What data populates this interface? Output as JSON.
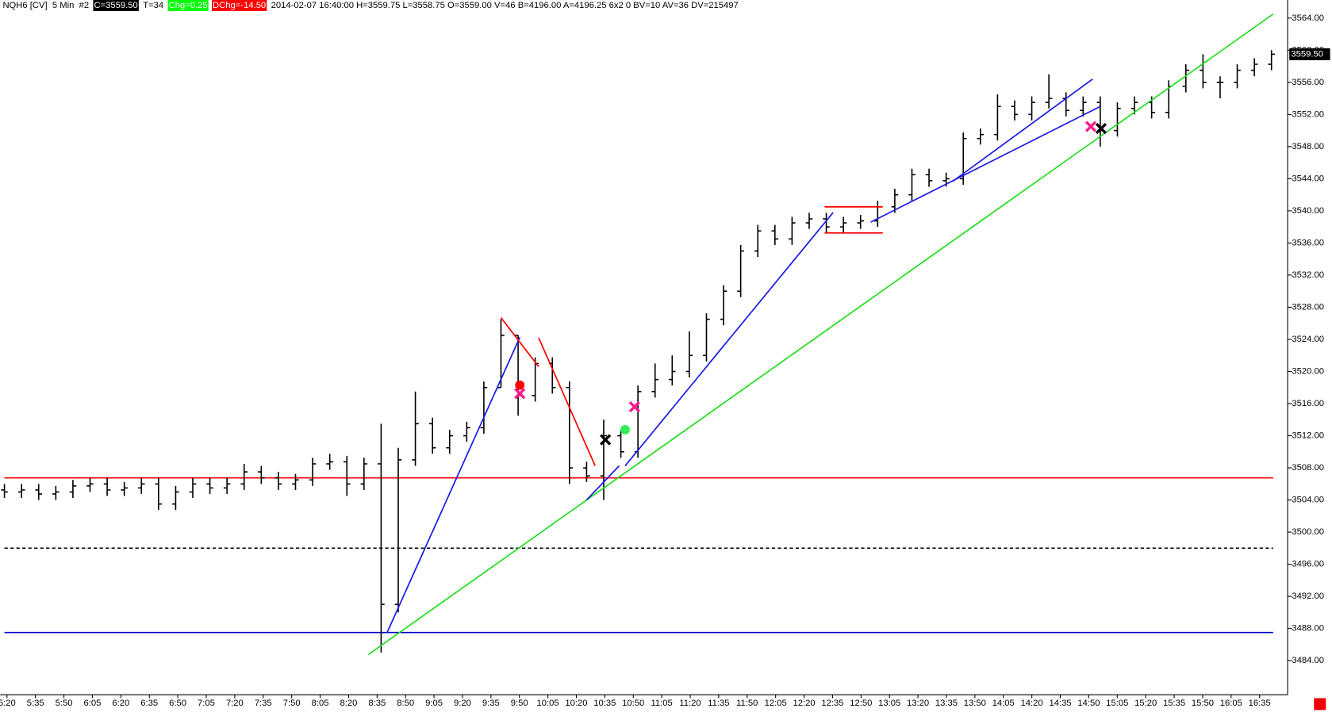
{
  "chart_data": {
    "type": "ohlc",
    "header": [
      {
        "text": "NQH6 [CV]  5 Min  #2"
      },
      {
        "text": "C=3559.50",
        "background": "#000000",
        "color": "#ffffff"
      },
      {
        "text": "T=34"
      },
      {
        "text": "Chg=0.25",
        "background": "#00ff00",
        "color": "#ffffff"
      },
      {
        "text": "DChg=-14.50",
        "background": "#ff0000",
        "color": "#ffffff"
      },
      {
        "text": "2014-02-07 16:40:00 H=3559.75 L=3558.75 O=3559.00 V=46 B=4196.00 A=4196.25 6x2 0 BV=10 AV=36 DV=215497"
      }
    ],
    "color": "#000000",
    "open": [
      3505.25,
      3505,
      3505.25,
      3504.75,
      3505,
      3505.75,
      3506,
      3505.25,
      3505.5,
      3506,
      3503.5,
      3505,
      3506,
      3505.5,
      3506,
      3507.5,
      3506.75,
      3506,
      3506.5,
      3508.5,
      3508.75,
      3506,
      3508.5,
      3491,
      3509,
      3513.5,
      3510.5,
      3512,
      3513,
      3518,
      3524.5,
      3517,
      3521,
      3518,
      3508,
      3507,
      3512,
      3510,
      3517.5,
      3519,
      3520,
      3522,
      3526.5,
      3530,
      3535,
      3537.5,
      3536.5,
      3538.5,
      3539,
      3538,
      3538.5,
      3538.75,
      3540.5,
      3542,
      3544.5,
      3543.75,
      3544,
      3549,
      3549.5,
      3553,
      3552,
      3553.5,
      3554,
      3552.5,
      3553.5,
      3550,
      3552.75,
      3553.5,
      3552.25,
      3555.5,
      3557.5,
      3556,
      3556,
      3557.5,
      3558.25
    ],
    "high": [
      3506,
      3506,
      3506,
      3505.75,
      3506.5,
      3506.75,
      3506.75,
      3506.25,
      3506.75,
      3506.75,
      3505.75,
      3506.75,
      3506.75,
      3506.75,
      3508.5,
      3508.25,
      3507.5,
      3507.25,
      3509.25,
      3509.75,
      3509.5,
      3509.25,
      3513.5,
      3510.5,
      3517.5,
      3514.25,
      3512.75,
      3513.75,
      3518.75,
      3526.5,
      3524.5,
      3521.75,
      3521.75,
      3518.75,
      3508.75,
      3514,
      3512.75,
      3518.25,
      3521,
      3522,
      3525,
      3527.25,
      3530.75,
      3535.75,
      3538.25,
      3538.25,
      3539.25,
      3539.75,
      3539.75,
      3539.25,
      3539.5,
      3541.25,
      3542.75,
      3545.25,
      3545.25,
      3544.75,
      3549.75,
      3550.25,
      3554.5,
      3553.75,
      3554.25,
      3557,
      3554.75,
      3554.25,
      3554.25,
      3553.5,
      3554.25,
      3554.25,
      3556.25,
      3558.25,
      3559.5,
      3556.75,
      3558.25,
      3559,
      3560
    ],
    "low": [
      3504.25,
      3504.25,
      3504,
      3504,
      3504.25,
      3505,
      3504.5,
      3504.5,
      3504.75,
      3502.75,
      3502.75,
      3504.25,
      3504.75,
      3504.75,
      3505.25,
      3506,
      3505.25,
      3505.25,
      3505.75,
      3507.75,
      3504.5,
      3505.25,
      3485,
      3490,
      3508.25,
      3509.75,
      3509.75,
      3511.25,
      3512.25,
      3518,
      3514.5,
      3516.25,
      3517.25,
      3506,
      3506.25,
      3504,
      3509.25,
      3509.25,
      3516.75,
      3518.25,
      3519.25,
      3521.25,
      3525.75,
      3529.25,
      3534.25,
      3535.75,
      3535.75,
      3537.75,
      3537.25,
      3537.25,
      3537.75,
      3538,
      3539.75,
      3541.25,
      3543,
      3543,
      3543.25,
      3548.25,
      3548.75,
      3551.25,
      3551.25,
      3552.75,
      3551.75,
      3551.75,
      3548,
      3549.25,
      3552,
      3551.5,
      3551.5,
      3554.75,
      3555.25,
      3554,
      3555.25,
      3556.75,
      3557.5
    ],
    "close": [
      3505,
      3505.25,
      3504.75,
      3505,
      3505.75,
      3506,
      3505.25,
      3505.5,
      3506,
      3503.5,
      3505,
      3506,
      3505.5,
      3506,
      3507.5,
      3506.75,
      3506,
      3506.5,
      3508.5,
      3508.75,
      3506,
      3508.5,
      3491,
      3509,
      3513.5,
      3510.5,
      3512,
      3513,
      3518,
      3524.5,
      3517,
      3521,
      3518,
      3508,
      3507,
      3512,
      3510,
      3517.5,
      3519,
      3520,
      3522,
      3526.5,
      3530,
      3535,
      3537.5,
      3536.5,
      3538.5,
      3539,
      3538,
      3538.5,
      3538.75,
      3540.5,
      3542,
      3544.5,
      3543.75,
      3544,
      3549,
      3549.5,
      3553,
      3552,
      3553.5,
      3554,
      3552.5,
      3553.5,
      3550,
      3552.75,
      3553.5,
      3552.25,
      3555.5,
      3557.5,
      3556,
      3556,
      3557.5,
      3558.25,
      3559.5
    ],
    "last_price": {
      "value": 3559.5,
      "label": "3559.50"
    },
    "x_labels": [
      "5:20",
      "5:35",
      "5:50",
      "6:05",
      "6:20",
      "6:35",
      "6:50",
      "7:05",
      "7:20",
      "7:35",
      "7:50",
      "8:05",
      "8:20",
      "8:35",
      "8:50",
      "9:05",
      "9:20",
      "9:35",
      "9:50",
      "10:05",
      "10:20",
      "10:35",
      "10:50",
      "11:05",
      "11:20",
      "11:35",
      "11:50",
      "12:05",
      "12:20",
      "12:35",
      "12:50",
      "13:05",
      "13:20",
      "13:35",
      "13:50",
      "14:05",
      "14:20",
      "14:35",
      "14:50",
      "15:05",
      "15:20",
      "15:35",
      "15:50",
      "16:05",
      "16:35"
    ],
    "ylim": [
      3479.75,
      3566.25
    ],
    "yticks": [
      {
        "value": 3484,
        "label": "3484.00"
      },
      {
        "value": 3488,
        "label": "3488.00"
      },
      {
        "value": 3492,
        "label": "3492.00"
      },
      {
        "value": 3496,
        "label": "3496.00"
      },
      {
        "value": 3500,
        "label": "3500.00"
      },
      {
        "value": 3504,
        "label": "3504.00"
      },
      {
        "value": 3508,
        "label": "3508.00"
      },
      {
        "value": 3512,
        "label": "3512.00"
      },
      {
        "value": 3516,
        "label": "3516.00"
      },
      {
        "value": 3520,
        "label": "3520.00"
      },
      {
        "value": 3524,
        "label": "3524.00"
      },
      {
        "value": 3528,
        "label": "3528.00"
      },
      {
        "value": 3532,
        "label": "3532.00"
      },
      {
        "value": 3536,
        "label": "3536.00"
      },
      {
        "value": 3540,
        "label": "3540.00"
      },
      {
        "value": 3544,
        "label": "3544.00"
      },
      {
        "value": 3548,
        "label": "3548.00"
      },
      {
        "value": 3552,
        "label": "3552.00"
      },
      {
        "value": 3556,
        "label": "3556.00"
      },
      {
        "value": 3560,
        "label": "3560.00"
      },
      {
        "value": 3564,
        "label": "3564.00"
      }
    ],
    "hlines": [
      {
        "value": 3506.75,
        "color": "#ff0000"
      },
      {
        "value": 3487.5,
        "color": "#0000cc"
      },
      {
        "value": 3498,
        "color": "#000000",
        "dash": true
      }
    ],
    "trendlines": [
      {
        "x": [
          21.25,
          74.1
        ],
        "y": [
          3484.75,
          3564.5
        ],
        "color": "#22dd22"
      },
      {
        "x": [
          22.35,
          30.1
        ],
        "y": [
          3487.5,
          3524.25
        ],
        "color": "#1a1ae6"
      },
      {
        "x": [
          34,
          35.9
        ],
        "y": [
          3504,
          3508.25
        ],
        "color": "#1a1ae6"
      },
      {
        "x": [
          36.25,
          48.4
        ],
        "y": [
          3508.25,
          3539.8
        ],
        "color": "#1a1ae6"
      },
      {
        "x": [
          50.6,
          64
        ],
        "y": [
          3538.6,
          3553
        ],
        "color": "#1a1ae6"
      },
      {
        "x": [
          55.4,
          63.55
        ],
        "y": [
          3543.7,
          3556.4
        ],
        "color": "#1a1ae6"
      },
      {
        "x": [
          29,
          31.2
        ],
        "y": [
          3526.7,
          3520.6
        ],
        "color": "#ff0000"
      },
      {
        "x": [
          31.2,
          34.5
        ],
        "y": [
          3524.2,
          3508.25
        ],
        "color": "#ff0000"
      },
      {
        "x": [
          47.9,
          51.3
        ],
        "y": [
          3540.5,
          3540.5
        ],
        "color": "#ff0000"
      },
      {
        "x": [
          47.9,
          51.3
        ],
        "y": [
          3537.25,
          3537.25
        ],
        "color": "#ff0000"
      }
    ],
    "markers": [
      {
        "x": 30.1,
        "y": 3518.3,
        "shape": "dot",
        "color": "#ff0000"
      },
      {
        "x": 30.1,
        "y": 3517.25,
        "shape": "x",
        "color": "#ff1a8c"
      },
      {
        "x": 36.25,
        "y": 3512.75,
        "shape": "dot",
        "color": "#33ee55"
      },
      {
        "x": 36.8,
        "y": 3515.6,
        "shape": "x",
        "color": "#ff1a8c"
      },
      {
        "x": 35.1,
        "y": 3511.5,
        "shape": "x",
        "color": "#000000"
      },
      {
        "x": 63.45,
        "y": 3550.5,
        "shape": "x",
        "color": "#ff1a8c"
      },
      {
        "x": 64.05,
        "y": 3550.25,
        "shape": "x",
        "color": "#000000"
      }
    ]
  }
}
